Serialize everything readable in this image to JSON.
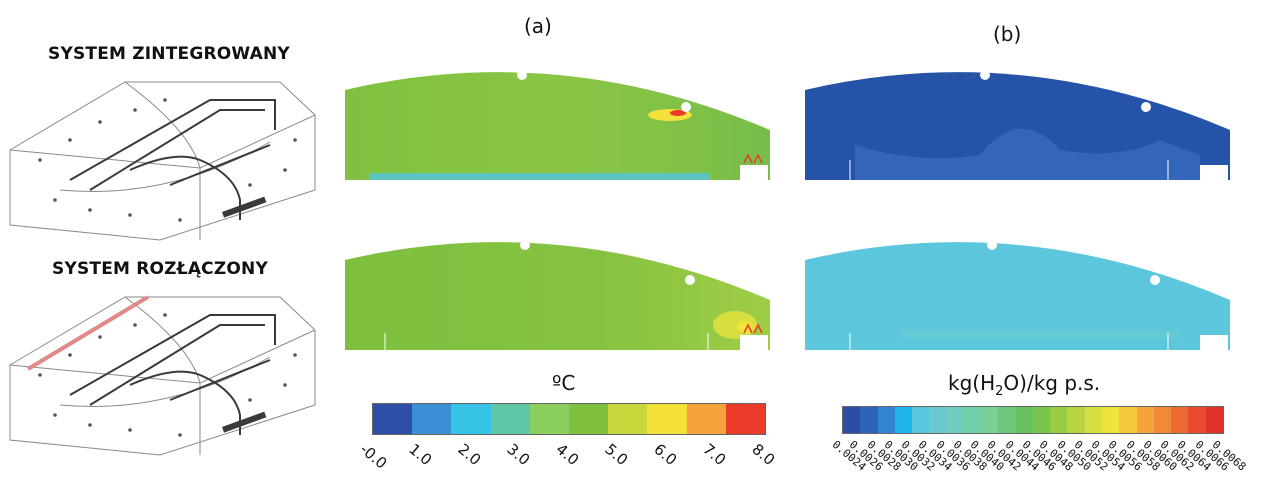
{
  "rows": {
    "integrated": "SYSTEM ZINTEGROWANY",
    "separated": "SYSTEM ROZŁĄCZONY"
  },
  "columns": {
    "a": "(a)",
    "b": "(b)"
  },
  "temperature_scale": {
    "unit": "ºC",
    "ticks": [
      "-0.0",
      "1.0",
      "2.0",
      "3.0",
      "4.0",
      "5.0",
      "6.0",
      "7.0",
      "8.0"
    ],
    "colors": [
      "#2d4fa8",
      "#3a8fd6",
      "#36c3e6",
      "#5fc7a8",
      "#8bcf5f",
      "#7fc13f",
      "#c7d63a",
      "#f2e23a",
      "#f4a23a",
      "#ea3a2a"
    ]
  },
  "humidity_scale": {
    "unit_prefix": "kg(H",
    "unit_sub": "2",
    "unit_suffix": "O)/kg p.s.",
    "ticks": [
      "0.0024",
      "0.0026",
      "0.0028",
      "0.0030",
      "0.0032",
      "0.0034",
      "0.0036",
      "0.0038",
      "0.0040",
      "0.0042",
      "0.0044",
      "0.0046",
      "0.0048",
      "0.0050",
      "0.0052",
      "0.0054",
      "0.0056",
      "0.0058",
      "0.0060",
      "0.0062",
      "0.0064",
      "0.0066",
      "0.0068"
    ],
    "colors": [
      "#2a4ea3",
      "#2f63b8",
      "#3384cf",
      "#1fb4ea",
      "#5ac6dc",
      "#6cc9cf",
      "#6fcdbd",
      "#71cfa9",
      "#78d094",
      "#6fc77a",
      "#67c25e",
      "#77c64b",
      "#9acb44",
      "#b9d441",
      "#d6e040",
      "#efe33c",
      "#f6c83b",
      "#f4a43a",
      "#f08a38",
      "#ec6a34",
      "#e84b2f",
      "#e2332b"
    ]
  },
  "panel_colors": {
    "temp_integrated": "#86c243",
    "temp_separated": "#7fbf3f",
    "hum_integrated": "#2453a8",
    "hum_separated": "#5bc6dc"
  }
}
